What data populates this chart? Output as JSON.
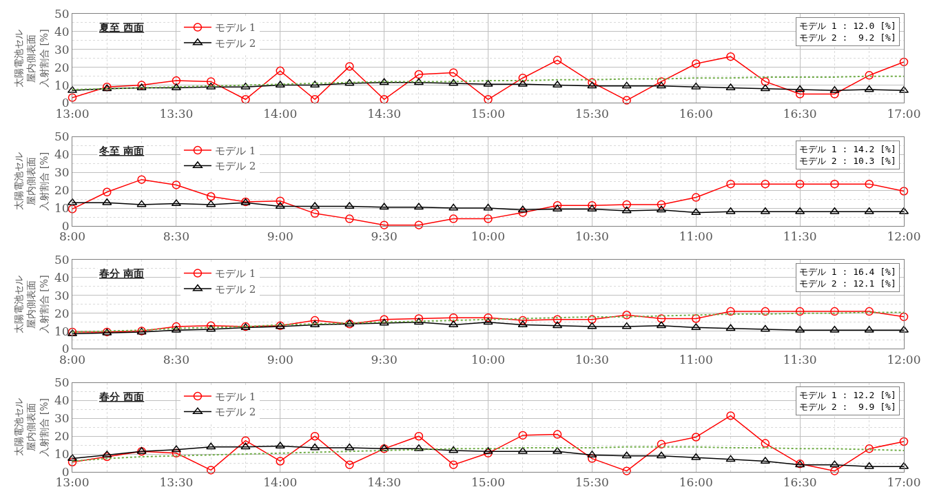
{
  "chart_data": [
    {
      "type": "line",
      "title": "夏至 西面",
      "ylabel": "太陽電池セル屋内側表面入射割合 [%]",
      "x": [
        13,
        13.1667,
        13.3333,
        13.5,
        13.6667,
        13.8333,
        14,
        14.1667,
        14.3333,
        14.5,
        14.6667,
        14.8333,
        15,
        15.1667,
        15.3333,
        15.5,
        15.6667,
        15.8333,
        16,
        16.1667,
        16.3333,
        16.5,
        16.6667,
        16.8333,
        17
      ],
      "xlim": [
        13,
        17
      ],
      "xticks": [
        {
          "value": 13,
          "label": "13:00"
        },
        {
          "value": 13.5,
          "label": "13:30"
        },
        {
          "value": 14,
          "label": "14:00"
        },
        {
          "value": 14.5,
          "label": "14:30"
        },
        {
          "value": 15,
          "label": "15:00"
        },
        {
          "value": 15.5,
          "label": "15:30"
        },
        {
          "value": 16,
          "label": "16:00"
        },
        {
          "value": 16.5,
          "label": "16:30"
        },
        {
          "value": 17,
          "label": "17:00"
        }
      ],
      "ylim": [
        0,
        50
      ],
      "yticks": [
        0,
        10,
        20,
        30,
        40,
        50
      ],
      "grid": true,
      "legend": "top left",
      "annotations": [
        "モデル 1 : 12.0 [%]",
        "モデル 2 :  9.2 [%]"
      ],
      "series": [
        {
          "name": "モデル 1",
          "color": "#ff0000",
          "marker": "circle",
          "line_style": "solid",
          "values": [
            3,
            9,
            10,
            12.5,
            12,
            2,
            18,
            2,
            20.5,
            2,
            16,
            17,
            2,
            14,
            24,
            11.5,
            1.5,
            12,
            22,
            26,
            12,
            5,
            5,
            15.5,
            23
          ]
        },
        {
          "name": "モデル 2",
          "color": "#000000",
          "marker": "triangle",
          "line_style": "solid",
          "values": [
            7,
            8,
            8.5,
            8.5,
            9,
            9,
            10,
            10,
            11,
            11.5,
            11.5,
            11,
            10.5,
            10.5,
            10,
            9.5,
            9.5,
            9.5,
            9,
            8.5,
            8,
            7.5,
            7,
            7.5,
            7
          ]
        },
        {
          "color": "#70ad47",
          "marker": "none",
          "line_style": "dotted",
          "values": [
            7.5,
            8,
            8.5,
            9,
            9.5,
            10,
            10.5,
            11,
            11.5,
            12,
            12,
            12,
            12.5,
            12.5,
            13,
            13,
            13.5,
            13.5,
            14,
            14,
            14.5,
            14.5,
            14.5,
            15,
            15
          ]
        }
      ]
    },
    {
      "type": "line",
      "title": "冬至 南面",
      "ylabel": "太陽電池セル屋内側表面入射割合 [%]",
      "x": [
        8,
        8.1667,
        8.3333,
        8.5,
        8.6667,
        8.8333,
        9,
        9.1667,
        9.3333,
        9.5,
        9.6667,
        9.8333,
        10,
        10.1667,
        10.3333,
        10.5,
        10.6667,
        10.8333,
        11,
        11.1667,
        11.3333,
        11.5,
        11.6667,
        11.8333,
        12
      ],
      "xlim": [
        8,
        12
      ],
      "xticks": [
        {
          "value": 8,
          "label": "8:00"
        },
        {
          "value": 8.5,
          "label": "8:30"
        },
        {
          "value": 9,
          "label": "9:00"
        },
        {
          "value": 9.5,
          "label": "9:30"
        },
        {
          "value": 10,
          "label": "10:00"
        },
        {
          "value": 10.5,
          "label": "10:30"
        },
        {
          "value": 11,
          "label": "11:00"
        },
        {
          "value": 11.5,
          "label": "11:30"
        },
        {
          "value": 12,
          "label": "12:00"
        }
      ],
      "ylim": [
        0,
        50
      ],
      "yticks": [
        0,
        10,
        20,
        30,
        40,
        50
      ],
      "grid": true,
      "legend": "top left",
      "annotations": [
        "モデル 1 : 14.2 [%]",
        "モデル 2 : 10.3 [%]"
      ],
      "series": [
        {
          "name": "モデル 1",
          "color": "#ff0000",
          "marker": "circle",
          "line_style": "solid",
          "values": [
            9.5,
            19,
            26,
            23,
            16.5,
            13.5,
            14,
            7,
            4,
            0.5,
            0.5,
            4,
            4,
            7.5,
            11.5,
            11.5,
            12,
            12,
            16,
            23.5,
            23.5,
            23.5,
            23.5,
            23.5,
            19.5
          ]
        },
        {
          "name": "モデル 2",
          "color": "#000000",
          "marker": "triangle",
          "line_style": "solid",
          "values": [
            13,
            13,
            12,
            12.5,
            12,
            13,
            11,
            11,
            11,
            10.5,
            10.5,
            10,
            10,
            9,
            9.5,
            9.5,
            8.5,
            9,
            7.5,
            8,
            8,
            8,
            8,
            8,
            8
          ]
        }
      ]
    },
    {
      "type": "line",
      "title": "春分 南面",
      "ylabel": "太陽電池セル屋内側表面入射割合 [%]",
      "x": [
        8,
        8.1667,
        8.3333,
        8.5,
        8.6667,
        8.8333,
        9,
        9.1667,
        9.3333,
        9.5,
        9.6667,
        9.8333,
        10,
        10.1667,
        10.3333,
        10.5,
        10.6667,
        10.8333,
        11,
        11.1667,
        11.3333,
        11.5,
        11.6667,
        11.8333,
        12
      ],
      "xlim": [
        8,
        12
      ],
      "xticks": [
        {
          "value": 8,
          "label": "8:00"
        },
        {
          "value": 8.5,
          "label": "8:30"
        },
        {
          "value": 9,
          "label": "9:00"
        },
        {
          "value": 9.5,
          "label": "9:30"
        },
        {
          "value": 10,
          "label": "10:00"
        },
        {
          "value": 10.5,
          "label": "10:30"
        },
        {
          "value": 11,
          "label": "11:00"
        },
        {
          "value": 11.5,
          "label": "11:30"
        },
        {
          "value": 12,
          "label": "12:00"
        }
      ],
      "ylim": [
        0,
        50
      ],
      "yticks": [
        0,
        10,
        20,
        30,
        40,
        50
      ],
      "grid": true,
      "legend": "top left",
      "annotations": [
        "モデル 1 : 16.4 [%]",
        "モデル 2 : 12.1 [%]"
      ],
      "series": [
        {
          "name": "モデル 1",
          "color": "#ff0000",
          "marker": "circle",
          "line_style": "solid",
          "values": [
            9.5,
            9.5,
            10,
            12.5,
            13,
            12.5,
            13,
            16,
            14,
            16.5,
            17,
            17.5,
            17.5,
            16,
            16.5,
            16.5,
            19,
            17,
            17,
            21,
            21,
            21,
            21,
            21,
            18
          ]
        },
        {
          "name": "モデル 2",
          "color": "#000000",
          "marker": "triangle",
          "line_style": "solid",
          "values": [
            8.5,
            9,
            9.5,
            10.5,
            11,
            12,
            12.5,
            13.5,
            14,
            14.5,
            15,
            13.5,
            15,
            13.5,
            13,
            12.5,
            12.5,
            13,
            12,
            11.5,
            11,
            10.5,
            10.5,
            10.5,
            10.5
          ]
        },
        {
          "color": "#70ad47",
          "marker": "none",
          "line_style": "dotted",
          "values": [
            9.5,
            10,
            10.5,
            11.5,
            12,
            12.5,
            13.5,
            14,
            14.5,
            15,
            15.5,
            16,
            16.5,
            17,
            17.5,
            18,
            18,
            18.5,
            19,
            19.5,
            19.5,
            20,
            20,
            20.5,
            20.5
          ]
        }
      ]
    },
    {
      "type": "line",
      "title": "春分 西面",
      "ylabel": "太陽電池セル屋内側表面入射割合 [%]",
      "x": [
        13,
        13.1667,
        13.3333,
        13.5,
        13.6667,
        13.8333,
        14,
        14.1667,
        14.3333,
        14.5,
        14.6667,
        14.8333,
        15,
        15.1667,
        15.3333,
        15.5,
        15.6667,
        15.8333,
        16,
        16.1667,
        16.3333,
        16.5,
        16.6667,
        16.8333,
        17
      ],
      "xlim": [
        13,
        17
      ],
      "xticks": [
        {
          "value": 13,
          "label": "13:00"
        },
        {
          "value": 13.5,
          "label": "13:30"
        },
        {
          "value": 14,
          "label": "14:00"
        },
        {
          "value": 14.5,
          "label": "14:30"
        },
        {
          "value": 15,
          "label": "15:00"
        },
        {
          "value": 15.5,
          "label": "15:30"
        },
        {
          "value": 16,
          "label": "16:00"
        },
        {
          "value": 16.5,
          "label": "16:30"
        },
        {
          "value": 17,
          "label": "17:00"
        }
      ],
      "ylim": [
        0,
        50
      ],
      "yticks": [
        0,
        10,
        20,
        30,
        40,
        50
      ],
      "grid": true,
      "legend": "top left",
      "annotations": [
        "モデル 1 : 12.2 [%]",
        "モデル 2 :  9.9 [%]"
      ],
      "series": [
        {
          "name": "モデル 1",
          "color": "#ff0000",
          "marker": "circle",
          "line_style": "solid",
          "values": [
            5.5,
            8.5,
            11.5,
            10.5,
            1,
            17.5,
            6,
            20,
            4,
            13,
            20,
            4,
            10.5,
            20.5,
            21,
            7.5,
            0.5,
            15.5,
            19.5,
            31.5,
            16,
            4.5,
            0.5,
            13,
            17
          ]
        },
        {
          "name": "モデル 2",
          "color": "#000000",
          "marker": "triangle",
          "line_style": "solid",
          "values": [
            7.5,
            9.5,
            11.5,
            12.5,
            14,
            14,
            14.5,
            13.5,
            13.5,
            13,
            13,
            12,
            11.5,
            11.5,
            11.5,
            9.5,
            9,
            9,
            8,
            7,
            6,
            4,
            4,
            3,
            3
          ]
        },
        {
          "color": "#70ad47",
          "marker": "none",
          "line_style": "dotted",
          "values": [
            6,
            7.5,
            8.5,
            9,
            9.5,
            10,
            10.5,
            11,
            11.5,
            12,
            12.5,
            13,
            13,
            13.5,
            13.5,
            13.5,
            14,
            14,
            14,
            13.5,
            13.5,
            13,
            13,
            12.5,
            12
          ]
        }
      ]
    }
  ]
}
